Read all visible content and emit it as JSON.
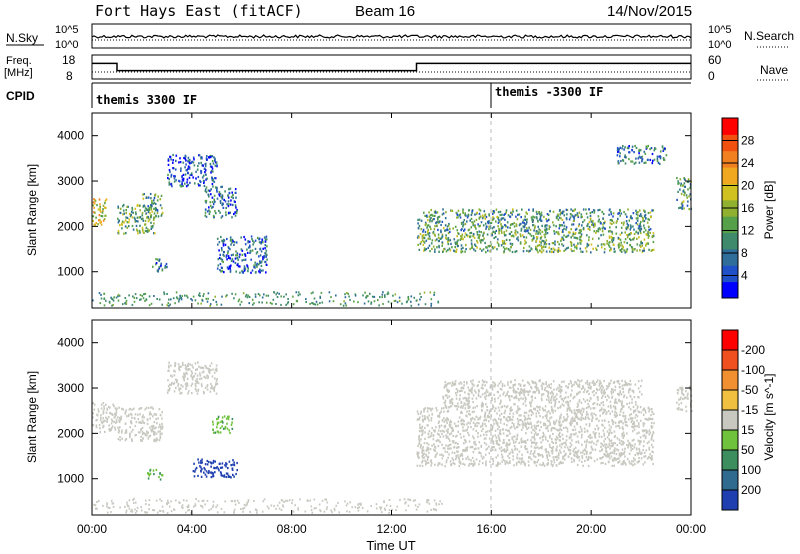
{
  "header": {
    "station": "Fort Hays East (fitACF)",
    "beam": "Beam 16",
    "date": "14/Nov/2015"
  },
  "panels": {
    "nsky": {
      "left_label": "N.Sky",
      "right_label": "N.Search",
      "left_ticks": [
        "10^5",
        "10^0"
      ],
      "right_ticks": [
        "10^5",
        "10^0"
      ]
    },
    "freq": {
      "left_label_1": "Freq.",
      "left_label_2": "[MHz]",
      "right_label": "Nave",
      "left_ticks": [
        "18",
        "8"
      ],
      "right_ticks": [
        "60",
        "0"
      ]
    },
    "cpid": {
      "label": "CPID",
      "segments": [
        {
          "start_h": 0,
          "label": "themis 3300 IF"
        },
        {
          "start_h": 16,
          "label": "themis -3300 IF"
        }
      ]
    },
    "power": {
      "ylabel": "Slant Range [km]",
      "cbar_label": "Power [dB]",
      "cbar_ticks": [
        "4",
        "8",
        "12",
        "16",
        "20",
        "24",
        "28"
      ],
      "cbar_colors": [
        "#0000ff",
        "#2050c8",
        "#2f6e9a",
        "#3e8a6a",
        "#57a04a",
        "#90b030",
        "#d0c020",
        "#f0a820",
        "#f08020",
        "#f05010",
        "#ff0000"
      ]
    },
    "velocity": {
      "ylabel": "Slant Range [km]",
      "cbar_label": "Velocity [m s^-1]",
      "cbar_ticks": [
        "200",
        "100",
        "50",
        "15",
        "-15",
        "-50",
        "-100",
        "-200"
      ],
      "cbar_colors": [
        "#1f3fb0",
        "#2f6a8f",
        "#3c8e5e",
        "#6fc23c",
        "#c8c8c0",
        "#f0c040",
        "#f09030",
        "#f05020",
        "#ff0000"
      ]
    }
  },
  "xaxis": {
    "label": "Time UT",
    "ticks": [
      "00:00",
      "04:00",
      "08:00",
      "12:00",
      "16:00",
      "20:00",
      "00:00"
    ]
  },
  "chart_data": [
    {
      "type": "heatmap",
      "name": "power",
      "x_range_hours": [
        0,
        24
      ],
      "ylim": [
        200,
        4500
      ],
      "yticks": [
        1000,
        2000,
        3000,
        4000
      ],
      "ylabel": "Slant Range [km]",
      "zlabel": "Power [dB]",
      "zlim": [
        0,
        30
      ],
      "regions": [
        {
          "t": [
            0.0,
            0.6
          ],
          "r": [
            2050,
            2650
          ],
          "z": 18
        },
        {
          "t": [
            1.0,
            2.5
          ],
          "r": [
            1850,
            2500
          ],
          "z": 12
        },
        {
          "t": [
            2.0,
            2.8
          ],
          "r": [
            2200,
            2750
          ],
          "z": 10
        },
        {
          "t": [
            2.4,
            3.0
          ],
          "r": [
            1000,
            1300
          ],
          "z": 6
        },
        {
          "t": [
            3.0,
            5.0
          ],
          "r": [
            2900,
            3600
          ],
          "z": 4
        },
        {
          "t": [
            4.5,
            5.8
          ],
          "r": [
            2200,
            2900
          ],
          "z": 6
        },
        {
          "t": [
            5.0,
            7.0
          ],
          "r": [
            1000,
            1800
          ],
          "z": 5
        },
        {
          "t": [
            13.0,
            22.5
          ],
          "r": [
            1450,
            1900
          ],
          "z": 12
        },
        {
          "t": [
            13.0,
            22.5
          ],
          "r": [
            1900,
            2400
          ],
          "z": 10
        },
        {
          "t": [
            21.0,
            23.0
          ],
          "r": [
            3400,
            3800
          ],
          "z": 6
        },
        {
          "t": [
            23.4,
            24.0
          ],
          "r": [
            2400,
            3100
          ],
          "z": 10
        }
      ]
    },
    {
      "type": "heatmap",
      "name": "velocity",
      "x_range_hours": [
        0,
        24
      ],
      "ylim": [
        200,
        4500
      ],
      "yticks": [
        1000,
        2000,
        3000,
        4000
      ],
      "ylabel": "Slant Range [km]",
      "zlabel": "Velocity [m s^-1]",
      "zlim": [
        -250,
        250
      ],
      "regions": [
        {
          "t": [
            0.0,
            1.0
          ],
          "r": [
            2050,
            2700
          ],
          "z": 0
        },
        {
          "t": [
            1.0,
            2.8
          ],
          "r": [
            1850,
            2600
          ],
          "z": 0
        },
        {
          "t": [
            2.2,
            2.8
          ],
          "r": [
            1000,
            1250
          ],
          "z": 40
        },
        {
          "t": [
            3.0,
            5.0
          ],
          "r": [
            2900,
            3600
          ],
          "z": 0
        },
        {
          "t": [
            4.8,
            5.6
          ],
          "r": [
            2000,
            2400
          ],
          "z": 40
        },
        {
          "t": [
            4.0,
            5.8
          ],
          "r": [
            1050,
            1450
          ],
          "z": 220
        },
        {
          "t": [
            13.0,
            22.5
          ],
          "r": [
            1300,
            2600
          ],
          "z": 0
        },
        {
          "t": [
            14.0,
            22.0
          ],
          "r": [
            2600,
            3200
          ],
          "z": 0
        },
        {
          "t": [
            23.4,
            24.0
          ],
          "r": [
            2500,
            3100
          ],
          "z": 0
        }
      ]
    },
    {
      "type": "line",
      "name": "frequency",
      "ylim": [
        8,
        18
      ],
      "x_hours": [
        0,
        1.0,
        1.0,
        13.0,
        13.0,
        24.0
      ],
      "y_mhz": [
        15,
        15,
        11,
        11,
        15,
        15
      ]
    }
  ]
}
